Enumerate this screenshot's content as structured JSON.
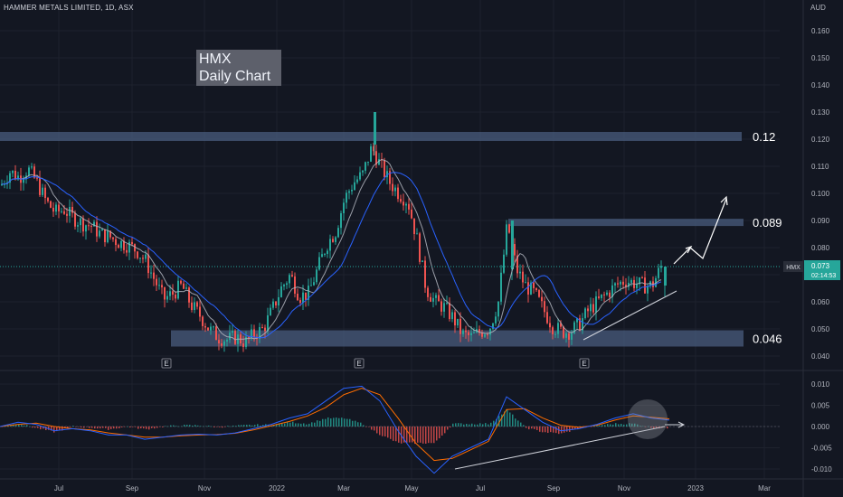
{
  "header": {
    "symbol_line": "HAMMER METALS LIMITED, 1D, ASX"
  },
  "title_box": {
    "line1": "HMX",
    "line2": "Daily Chart"
  },
  "price_axis": {
    "currency": "AUD",
    "ticks": [
      "0.160",
      "0.150",
      "0.140",
      "0.130",
      "0.120",
      "0.110",
      "0.100",
      "0.090",
      "0.080",
      "0.070",
      "0.060",
      "0.050",
      "0.040"
    ],
    "tick_values": [
      0.16,
      0.15,
      0.14,
      0.13,
      0.12,
      0.11,
      0.1,
      0.09,
      0.08,
      0.07,
      0.06,
      0.05,
      0.04
    ]
  },
  "price_tag": {
    "symbol": "HMX",
    "price": "0.073",
    "countdown": "02:14:53",
    "value": 0.073
  },
  "levels": [
    {
      "label": "0.12",
      "value": 0.121
    },
    {
      "label": "0.089",
      "value": 0.0893
    },
    {
      "label": "0.046",
      "value": 0.0465
    }
  ],
  "earnings_marker": "E",
  "x_axis": {
    "labels": [
      "Jul",
      "Sep",
      "Nov",
      "2022",
      "Mar",
      "May",
      "Jul",
      "Sep",
      "Nov",
      "2023",
      "Mar"
    ]
  },
  "macd_axis": {
    "ticks": [
      "0.010",
      "0.005",
      "0.000",
      "-0.005",
      "-0.010"
    ],
    "tick_values": [
      0.01,
      0.005,
      0.0,
      -0.005,
      -0.01
    ]
  },
  "colors": {
    "background": "#131722",
    "up": "#26a69a",
    "down": "#ef5350",
    "zone": "#4a5c7d",
    "ma_fast": "#b2b5be",
    "ma_slow": "#2962ff",
    "macd_line": "#2962ff",
    "signal_line": "#ff6d00",
    "grid": "#1e222d",
    "text": "#d1d4dc"
  },
  "chart_data": {
    "type": "candlestick",
    "title": "HMX Daily Chart",
    "ylabel": "AUD",
    "ylim": [
      0.035,
      0.165
    ],
    "x_range": [
      "2021-06",
      "2023-03"
    ],
    "close_path": {
      "x": [
        0,
        10,
        20,
        30,
        40,
        50,
        60,
        70,
        80,
        90,
        100,
        110,
        120,
        130,
        140,
        150,
        160,
        170,
        180,
        190,
        200,
        210,
        220,
        230,
        240,
        250,
        260,
        270,
        280,
        290,
        300,
        310,
        320,
        330,
        340,
        350,
        360,
        370,
        380,
        390,
        400,
        410,
        420,
        430,
        440,
        450,
        460,
        470,
        480,
        490,
        500,
        510,
        520,
        530,
        540,
        550,
        560,
        570,
        580,
        590,
        600,
        610,
        620,
        630,
        640,
        650,
        660,
        670,
        680,
        690,
        700,
        710,
        720,
        730
      ],
      "y": [
        0.103,
        0.108,
        0.106,
        0.109,
        0.104,
        0.097,
        0.093,
        0.094,
        0.091,
        0.089,
        0.088,
        0.085,
        0.084,
        0.082,
        0.081,
        0.079,
        0.075,
        0.068,
        0.061,
        0.063,
        0.066,
        0.059,
        0.055,
        0.05,
        0.047,
        0.046,
        0.047,
        0.045,
        0.048,
        0.05,
        0.057,
        0.065,
        0.07,
        0.062,
        0.063,
        0.072,
        0.081,
        0.086,
        0.098,
        0.104,
        0.107,
        0.117,
        0.11,
        0.104,
        0.1,
        0.097,
        0.083,
        0.065,
        0.06,
        0.058,
        0.054,
        0.048,
        0.047,
        0.049,
        0.05,
        0.06,
        0.089,
        0.072,
        0.066,
        0.063,
        0.057,
        0.051,
        0.049,
        0.049,
        0.052,
        0.057,
        0.06,
        0.063,
        0.066,
        0.068,
        0.067,
        0.066,
        0.066,
        0.073
      ]
    },
    "macd": {
      "ylim": [
        -0.0115,
        0.012
      ],
      "x": [
        0,
        20,
        40,
        60,
        80,
        100,
        120,
        140,
        160,
        180,
        200,
        220,
        240,
        260,
        280,
        300,
        320,
        340,
        360,
        380,
        400,
        420,
        440,
        460,
        480,
        500,
        520,
        540,
        560,
        580,
        600,
        620,
        640,
        660,
        680,
        700,
        720,
        740
      ],
      "macd": [
        0.0,
        0.001,
        0.0005,
        -0.001,
        -0.0005,
        -0.001,
        -0.002,
        -0.002,
        -0.003,
        -0.0025,
        -0.002,
        -0.0018,
        -0.002,
        -0.0015,
        -0.0005,
        0.0005,
        0.002,
        0.003,
        0.006,
        0.009,
        0.0095,
        0.006,
        -0.001,
        -0.007,
        -0.011,
        -0.007,
        -0.005,
        -0.003,
        0.007,
        0.004,
        0.001,
        -0.001,
        -0.0005,
        0.0005,
        0.002,
        0.003,
        0.002,
        0.0015
      ],
      "signal": [
        0.0,
        0.0005,
        0.0008,
        0.0,
        -0.0005,
        -0.0008,
        -0.0015,
        -0.002,
        -0.0025,
        -0.0025,
        -0.0022,
        -0.002,
        -0.0019,
        -0.0016,
        -0.0008,
        0.0002,
        0.0012,
        0.0025,
        0.0045,
        0.0075,
        0.009,
        0.0075,
        0.002,
        -0.004,
        -0.008,
        -0.0075,
        -0.0055,
        -0.0035,
        0.004,
        0.0042,
        0.002,
        0.0003,
        -0.0002,
        0.0003,
        0.0015,
        0.0025,
        0.0022,
        0.0018
      ]
    }
  }
}
